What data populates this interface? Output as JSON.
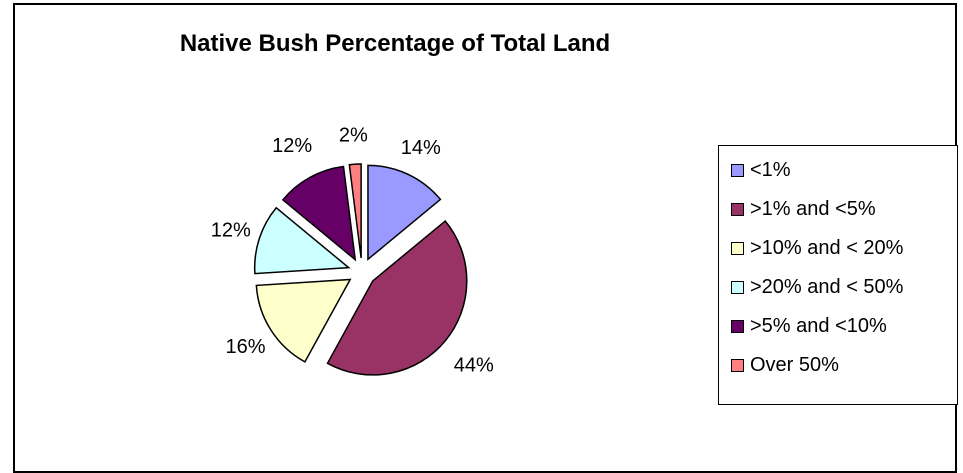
{
  "chart_data": {
    "type": "pie",
    "title": "Native Bush Percentage of Total Land",
    "legend_position": "right",
    "slices": [
      {
        "label": "<1%",
        "value": 14,
        "display": "14%",
        "color": "#9999ff"
      },
      {
        "label": ">1% and <5%",
        "value": 44,
        "display": "44%",
        "color": "#993366"
      },
      {
        "label": ">10% and < 20%",
        "value": 16,
        "display": "16%",
        "color": "#ffffcc"
      },
      {
        "label": ">20% and < 50%",
        "value": 12,
        "display": "12%",
        "color": "#ccffff"
      },
      {
        "label": ">5% and <10%",
        "value": 12,
        "display": "12%",
        "color": "#660066"
      },
      {
        "label": "Over 50%",
        "value": 2,
        "display": "2%",
        "color": "#ff8080"
      }
    ]
  }
}
